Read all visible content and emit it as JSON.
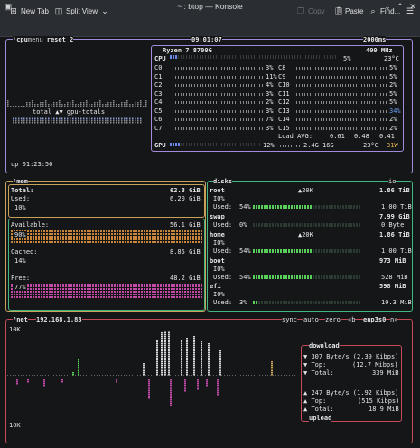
{
  "window": {
    "title": "~ : btop — Konsole"
  },
  "toolbar": {
    "new_tab": "New Tab",
    "split_view": "Split View",
    "copy": "Copy",
    "paste": "Paste",
    "find": "Find..."
  },
  "cpu": {
    "tabs": {
      "cpu": "cpu",
      "menu": "menu",
      "preset": "reset 2"
    },
    "clock": "09:01:07",
    "interval": "2000ms",
    "model": "Ryzen 7 8700G",
    "freq": "400 MHz",
    "total_pct": "5%",
    "total_temp": "23°C",
    "graph_label": "total ▲▼ gpu-totals",
    "cores_left": [
      {
        "name": "C0",
        "pct": "3%"
      },
      {
        "name": "C1",
        "pct": "11%"
      },
      {
        "name": "C2",
        "pct": "4%"
      },
      {
        "name": "C3",
        "pct": "3%"
      },
      {
        "name": "C4",
        "pct": "2%"
      },
      {
        "name": "C5",
        "pct": "3%"
      },
      {
        "name": "C6",
        "pct": "7%"
      },
      {
        "name": "C7",
        "pct": "3%"
      }
    ],
    "cores_right": [
      {
        "name": "C8",
        "pct": "5%"
      },
      {
        "name": "C9",
        "pct": "5%"
      },
      {
        "name": "C10",
        "pct": "2%"
      },
      {
        "name": "C11",
        "pct": "5%"
      },
      {
        "name": "C12",
        "pct": "5%"
      },
      {
        "name": "C13",
        "pct": "34%"
      },
      {
        "name": "C14",
        "pct": "2%"
      },
      {
        "name": "C15",
        "pct": "2%"
      }
    ],
    "load_label": "Load AVG:",
    "load": [
      "0.61",
      "0.48",
      "0.41"
    ],
    "gpu_label": "GPU",
    "gpu_pct": "12%",
    "gpu_mem": "2.4G",
    "gpu_total": "16G",
    "gpu_temp": "23°C",
    "gpu_power": "31W",
    "uptime": "up 01:23:56"
  },
  "mem": {
    "title": "mem",
    "total_label": "Total:",
    "total": "62.3 GiB",
    "used_label": "Used:",
    "used": "6.20 GiB",
    "used_pct": "10%",
    "avail_label": "Available:",
    "avail": "56.1 GiB",
    "avail_pct": "90%",
    "cached_label": "Cached:",
    "cached": "8.85 GiB",
    "cached_pct": "14%",
    "free_label": "Free:",
    "free": "48.2 GiB",
    "free_pct": "77%"
  },
  "disks": {
    "title": "disks",
    "io_rate": "▲20K",
    "items": [
      {
        "name": "root",
        "io_label": "▲20K",
        "size": "1.86 TiB",
        "io": "IO%",
        "used_pct": "54%",
        "used": "1.00 TiB"
      },
      {
        "name": "swap",
        "io_label": "",
        "size": "7.99 GiB",
        "io": "",
        "used_pct": "0%",
        "used": "0 Byte"
      },
      {
        "name": "home",
        "io_label": "▲20K",
        "size": "1.86 TiB",
        "io": "IO%",
        "used_pct": "54%",
        "used": "1.00 TiB"
      },
      {
        "name": "boot",
        "io_label": "",
        "size": "973 MiB",
        "io": "IO%",
        "used_pct": "54%",
        "used": "528 MiB"
      },
      {
        "name": "efi",
        "io_label": "",
        "size": "598 MiB",
        "io": "IO%",
        "used_pct": "3%",
        "used": "19.3 MiB"
      }
    ],
    "used_label": "Used:"
  },
  "net": {
    "title": "net",
    "ip": "192.168.1.83",
    "sync": "sync",
    "auto": "auto",
    "zero": "zero",
    "iface": "enp3s0",
    "scale_top": "10K",
    "scale_bottom": "10K",
    "download_label": "download",
    "dl_rate": "307 Byte/s (2.39 Kibps)",
    "dl_top": "(12.7 Mibps)",
    "dl_total": "339 MiB",
    "upload_label": "upload",
    "ul_rate": "247 Byte/s (1.92 Kibps)",
    "ul_top": "(515 Kibps)",
    "ul_total": "18.9 MiB",
    "top_label": "Top:",
    "total_label": "Total:"
  }
}
